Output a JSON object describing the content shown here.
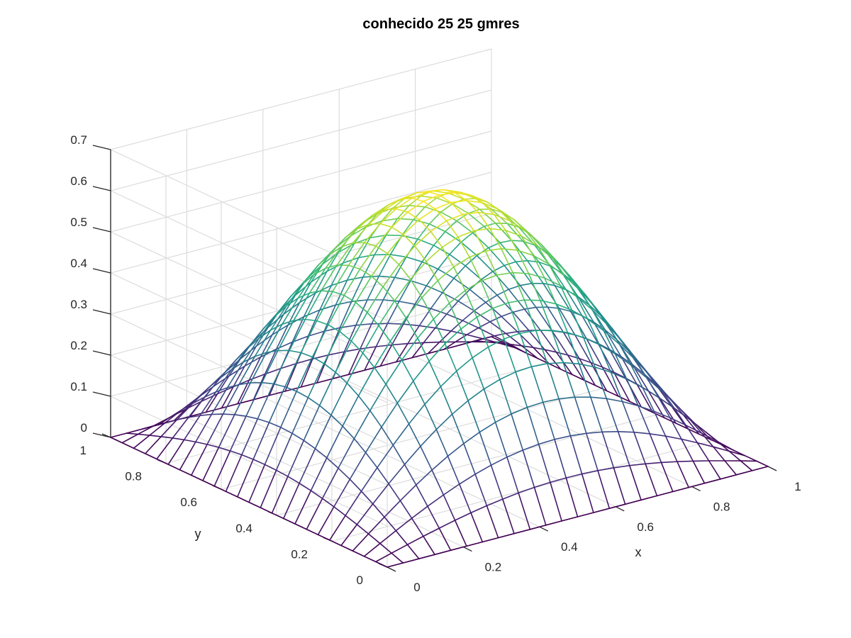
{
  "chart_data": {
    "type": "surface",
    "title": "conhecido 25 25 gmres",
    "xlabel": "x",
    "ylabel": "y",
    "zlabel": "",
    "function": "0.625 * sin(pi*x) * sin(pi*y)",
    "grid_points": 25,
    "xlim": [
      0,
      1
    ],
    "ylim": [
      0,
      1
    ],
    "zlim": [
      0,
      0.7
    ],
    "z_max": 0.625,
    "x_ticks": [
      "0",
      "0.2",
      "0.4",
      "0.6",
      "0.8",
      "1"
    ],
    "y_ticks": [
      "0",
      "0.2",
      "0.4",
      "0.6",
      "0.8",
      "1"
    ],
    "z_ticks": [
      "0",
      "0.1",
      "0.2",
      "0.3",
      "0.4",
      "0.5",
      "0.6",
      "0.7"
    ],
    "colormap": "viridis",
    "colormap_stops": [
      "#440154",
      "#472c7a",
      "#3b518b",
      "#2c718e",
      "#21908d",
      "#27ad81",
      "#5cc863",
      "#aadc32",
      "#fde725"
    ],
    "grid": true,
    "background": "#ffffff"
  }
}
